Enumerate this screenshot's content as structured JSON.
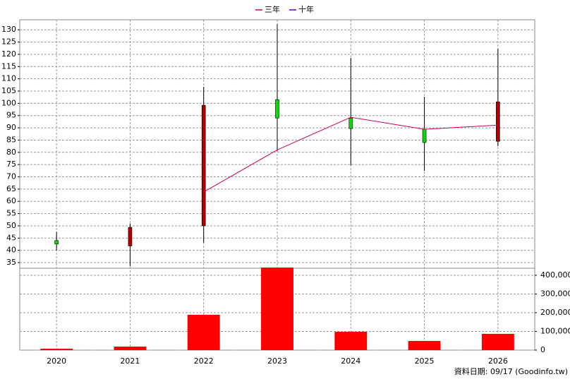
{
  "chart_data": {
    "type": "candlestick",
    "categories": [
      "2020",
      "2021",
      "2022",
      "2023",
      "2024",
      "2025",
      "2026"
    ],
    "open": [
      44,
      41.8,
      50,
      101.5,
      94,
      89.4,
      84.5
    ],
    "high": [
      47.5,
      51,
      106.7,
      132.3,
      118.5,
      102.7,
      122.2
    ],
    "low": [
      40,
      33.5,
      43.1,
      80.5,
      74.7,
      72.4,
      82.5
    ],
    "close": [
      42.6,
      49.4,
      99.2,
      94,
      89.7,
      84,
      100.6
    ],
    "up_color": "#b00000",
    "down_color": "#00e000",
    "ylim": [
      32.7,
      134.1
    ],
    "yticks": [
      35,
      40,
      45,
      50,
      55,
      60,
      65,
      70,
      75,
      80,
      85,
      90,
      95,
      100,
      105,
      110,
      115,
      120,
      125,
      130
    ],
    "series": [
      {
        "name": "三年",
        "color": "#cc0066",
        "values": [
          null,
          null,
          63.8,
          81,
          94.3,
          89.4,
          91.1
        ]
      },
      {
        "name": "十年",
        "color": "#6600cc",
        "values": [
          null,
          null,
          null,
          null,
          null,
          null,
          null
        ]
      }
    ],
    "volume": {
      "type": "bar",
      "color": "#ff0000",
      "values": [
        7500,
        19000,
        189000,
        441500,
        98000,
        49000,
        87000
      ],
      "ylim": [
        0,
        437700
      ],
      "yticks": [
        0,
        {
          "value": 100000,
          "label": "100,000"
        },
        {
          "value": 200000,
          "label": "200,000"
        },
        {
          "value": 300000,
          "label": "300,000"
        },
        {
          "value": 400000,
          "label": "400,000"
        }
      ]
    },
    "grid": true
  },
  "footnote": "資料日期: 09/17  (Goodinfo.tw)"
}
